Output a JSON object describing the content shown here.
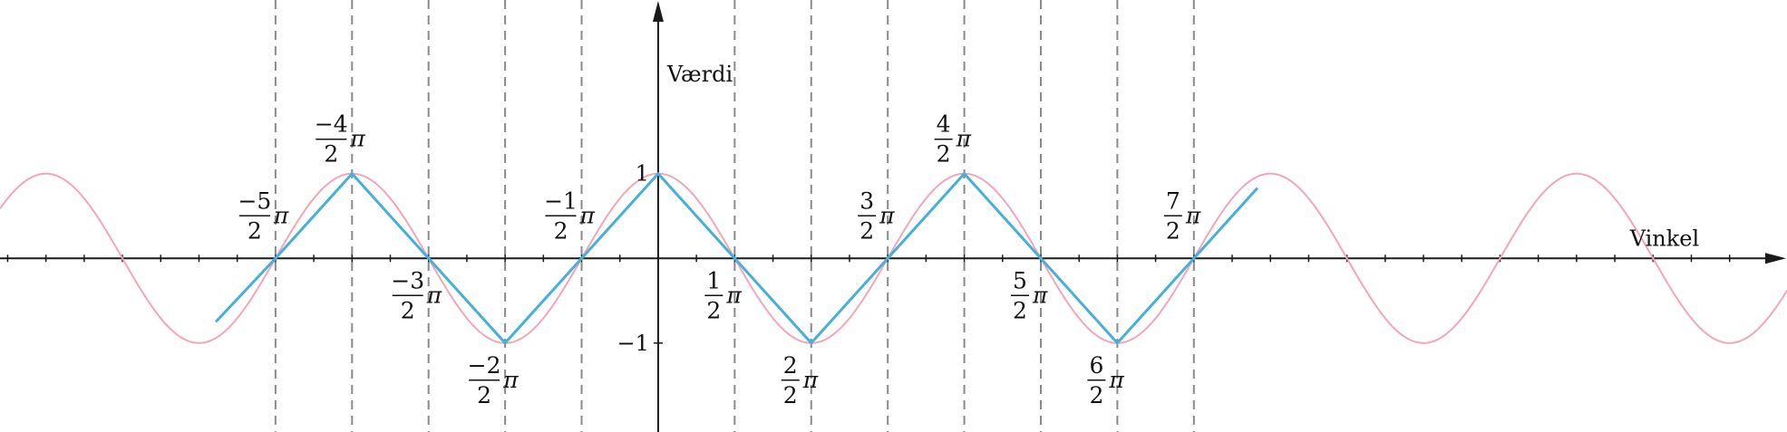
{
  "chart_data": {
    "type": "line",
    "xlabel": "Vinkel",
    "ylabel": "Værdi",
    "xlim": [
      -8.6,
      14.75
    ],
    "ylim": [
      -2.05,
      3.05
    ],
    "x_unit": "π/2",
    "y_ticks": [
      {
        "value": 1,
        "label": "1"
      },
      {
        "value": -1,
        "label": "−1"
      }
    ],
    "vertical_gridlines_at_multiples_of_pi_half": [
      -5,
      -4,
      -3,
      -2,
      -1,
      1,
      2,
      3,
      4,
      5,
      6,
      7
    ],
    "grid": "dashed vertical lines at multiples of π/2",
    "x_tick_labels": [
      {
        "numerator": "−5",
        "denominator": "2",
        "suffix": "π",
        "value": -5
      },
      {
        "numerator": "−4",
        "denominator": "2",
        "suffix": "π",
        "value": -4
      },
      {
        "numerator": "−3",
        "denominator": "2",
        "suffix": "π",
        "value": -3
      },
      {
        "numerator": "−2",
        "denominator": "2",
        "suffix": "π",
        "value": -2
      },
      {
        "numerator": "−1",
        "denominator": "2",
        "suffix": "π",
        "value": -1
      },
      {
        "numerator": "1",
        "denominator": "2",
        "suffix": "π",
        "value": 1
      },
      {
        "numerator": "2",
        "denominator": "2",
        "suffix": "π",
        "value": 2
      },
      {
        "numerator": "3",
        "denominator": "2",
        "suffix": "π",
        "value": 3
      },
      {
        "numerator": "4",
        "denominator": "2",
        "suffix": "π",
        "value": 4
      },
      {
        "numerator": "5",
        "denominator": "2",
        "suffix": "π",
        "value": 5
      },
      {
        "numerator": "6",
        "denominator": "2",
        "suffix": "π",
        "value": 6
      },
      {
        "numerator": "7",
        "denominator": "2",
        "suffix": "π",
        "value": 7
      }
    ],
    "series": [
      {
        "function": "cos(x)",
        "color": "#f4a5b8",
        "style": "smooth curve"
      },
      {
        "function": "triangle wave through the same peaks and zeros",
        "color": "#45b0d8",
        "style": "piecewise linear",
        "points": [
          {
            "x": -5.78,
            "y": -0.75
          },
          {
            "x": -5,
            "y": 0
          },
          {
            "x": -4,
            "y": 1
          },
          {
            "x": -3,
            "y": 0
          },
          {
            "x": -2,
            "y": -1
          },
          {
            "x": -1,
            "y": 0
          },
          {
            "x": 0,
            "y": 1
          },
          {
            "x": 1,
            "y": 0
          },
          {
            "x": 2,
            "y": -1
          },
          {
            "x": 3,
            "y": 0
          },
          {
            "x": 4,
            "y": 1
          },
          {
            "x": 5,
            "y": 0
          },
          {
            "x": 6,
            "y": -1
          },
          {
            "x": 7,
            "y": 0
          },
          {
            "x": 7.83,
            "y": 0.83
          }
        ]
      }
    ]
  }
}
